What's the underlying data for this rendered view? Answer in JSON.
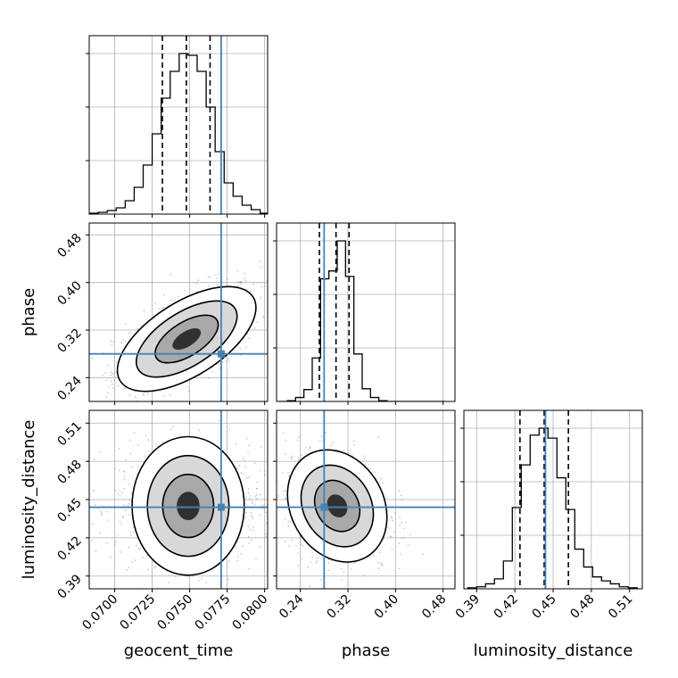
{
  "chart_data": {
    "type": "corner",
    "parameters": [
      "geocent_time",
      "phase",
      "luminosity_distance"
    ],
    "axis_labels": {
      "x": [
        "geocent_time",
        "phase",
        "luminosity_distance"
      ],
      "y_row2": "phase",
      "y_row3": "luminosity_distance"
    },
    "ranges": {
      "geocent_time": [
        0.0683,
        0.0802
      ],
      "phase": [
        0.2,
        0.5
      ],
      "luminosity_distance": [
        0.38,
        0.52
      ]
    },
    "ticks": {
      "geocent_time": [
        "0.0700",
        "0.0725",
        "0.0750",
        "0.0775",
        "0.0800"
      ],
      "phase": [
        "0.24",
        "0.32",
        "0.40",
        "0.48"
      ],
      "luminosity_distance": [
        "0.39",
        "0.42",
        "0.45",
        "0.48",
        "0.51"
      ]
    },
    "truth": {
      "geocent_time": 0.0771,
      "phase": 0.28,
      "luminosity_distance": 0.444
    },
    "quantiles": {
      "geocent_time": [
        0.07318,
        0.07478,
        0.07636
      ],
      "phase": [
        0.272,
        0.3,
        0.322
      ],
      "luminosity_distance": [
        0.424,
        0.443,
        0.462
      ]
    },
    "histograms": {
      "geocent_time": {
        "bin_edges": [
          0.0683,
          0.0689,
          0.0695,
          0.0701,
          0.0707,
          0.0713,
          0.0719,
          0.0725,
          0.0731,
          0.0737,
          0.0743,
          0.0749,
          0.0755,
          0.0761,
          0.0767,
          0.0773,
          0.0779,
          0.0785,
          0.0791,
          0.0797,
          0.0803
        ],
        "counts": [
          1,
          2,
          4,
          7,
          15,
          30,
          55,
          90,
          130,
          160,
          180,
          178,
          160,
          120,
          70,
          35,
          20,
          10,
          5,
          1
        ]
      },
      "phase": {
        "bin_edges": [
          0.204,
          0.218,
          0.232,
          0.246,
          0.26,
          0.274,
          0.288,
          0.302,
          0.316,
          0.33,
          0.344,
          0.358,
          0.372,
          0.386,
          0.4,
          0.414,
          0.428,
          0.442,
          0.456,
          0.47,
          0.484
        ],
        "counts": [
          0,
          1,
          5,
          15,
          55,
          155,
          165,
          203,
          158,
          60,
          16,
          5,
          1,
          0,
          0,
          0,
          0,
          0,
          0,
          0
        ]
      },
      "luminosity_distance": {
        "bin_edges": [
          0.383,
          0.39,
          0.397,
          0.404,
          0.411,
          0.418,
          0.425,
          0.432,
          0.439,
          0.446,
          0.453,
          0.46,
          0.467,
          0.474,
          0.481,
          0.488,
          0.495,
          0.502,
          0.509,
          0.516
        ],
        "counts": [
          1,
          2,
          5,
          10,
          28,
          82,
          125,
          155,
          162,
          152,
          112,
          80,
          40,
          22,
          12,
          8,
          5,
          2,
          1
        ]
      }
    },
    "density_2d": {
      "phase_vs_geocent_time": {
        "center": [
          0.0748,
          0.305
        ],
        "spread": [
          0.0021,
          0.04
        ],
        "correlation": 0.6
      },
      "luminosity_distance_vs_geocent_time": {
        "center": [
          0.0749,
          0.445
        ],
        "spread": [
          0.0021,
          0.02
        ],
        "correlation": 0.0
      },
      "luminosity_distance_vs_phase": {
        "center": [
          0.302,
          0.445
        ],
        "spread": [
          0.038,
          0.02
        ],
        "correlation": -0.2
      }
    },
    "colors": {
      "truth": "#4682b4",
      "contour": "#000000",
      "histogram": "#000000",
      "grid": "#b0b0b0",
      "scatter": "#8a8a8a"
    },
    "grid": true
  }
}
